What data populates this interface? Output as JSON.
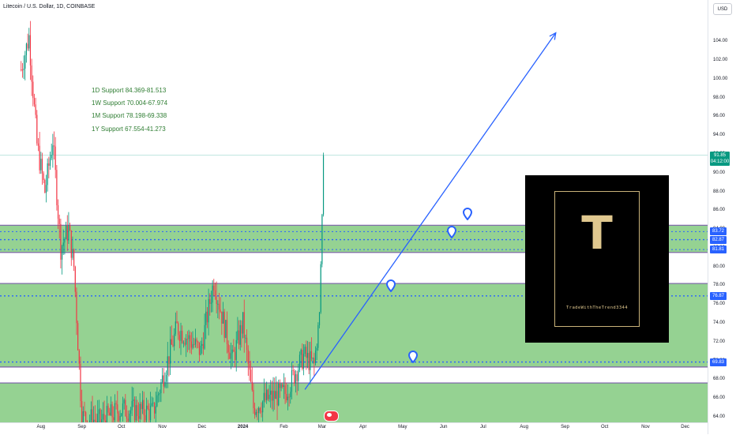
{
  "header": {
    "title": "Litecoin / U.S. Dollar, 1D, COINBASE",
    "currency": "USD"
  },
  "supports": [
    "1D Support 84.369-81.513",
    "1W Support 70.004-67.974",
    "1M Support 78.198-69.338",
    "1Y Support 67.554-41.273"
  ],
  "logo": {
    "letter": "T",
    "text": "TradeWithTheTrend3344",
    "bg": "#000000",
    "gold": "#e0c88f"
  },
  "price_tag": {
    "price": "91.85",
    "countdown": "04:12:00",
    "color": "#089981"
  },
  "level_badges": [
    {
      "label": "83.72",
      "value": 83.72,
      "color": "#2962ff"
    },
    {
      "label": "82.87",
      "value": 82.87,
      "color": "#2962ff"
    },
    {
      "label": "81.81",
      "value": 81.81,
      "color": "#2962ff"
    },
    {
      "label": "76.87",
      "value": 76.87,
      "color": "#2962ff"
    },
    {
      "label": "69.83",
      "value": 69.83,
      "color": "#2962ff"
    }
  ],
  "icons": [
    "location-marker-icon",
    "us-flag-event-icon"
  ],
  "colors": {
    "up": "#089981",
    "down": "#f23645",
    "zone_fill": "#8fd08c",
    "zone_border": "#7b5fa8",
    "level_line": "#2962ff",
    "arrow": "#2962ff"
  },
  "chart_data": {
    "type": "candlestick",
    "symbol": "Litecoin / U.S. Dollar",
    "interval": "1D",
    "exchange": "COINBASE",
    "ylim": [
      63.4,
      108.4
    ],
    "y_ticks": [
      "104.00",
      "102.00",
      "100.00",
      "98.00",
      "96.00",
      "94.00",
      "92.00",
      "90.00",
      "88.00",
      "86.00",
      "84.00",
      "82.00",
      "80.00",
      "78.00",
      "76.00",
      "74.00",
      "72.00",
      "70.00",
      "68.00",
      "66.00",
      "64.00"
    ],
    "x_ticks": [
      "Aug",
      "Sep",
      "Oct",
      "Nov",
      "Dec",
      "2024",
      "Feb",
      "Mar",
      "Apr",
      "May",
      "Jun",
      "Jul",
      "Aug",
      "Sep",
      "Oct",
      "Nov",
      "Dec"
    ],
    "x_tick_bold": [
      false,
      false,
      false,
      false,
      false,
      true,
      false,
      false,
      false,
      false,
      false,
      false,
      false,
      false,
      false,
      false,
      false
    ],
    "x_range_days": [
      -16,
      520
    ],
    "x_tick_days": [
      15,
      46,
      76,
      107,
      137,
      168,
      199,
      228,
      259,
      289,
      320,
      350,
      381,
      412,
      442,
      473,
      503
    ],
    "zones": [
      {
        "low": 81.5,
        "high": 84.4
      },
      {
        "low": 69.3,
        "high": 78.2
      },
      {
        "low": 41.3,
        "high": 67.6
      }
    ],
    "level_lines": [
      82.87,
      76.87,
      69.83
    ],
    "last_price": 91.85,
    "trend_arrow": {
      "start": [
        215,
        66.9
      ],
      "end": [
        405,
        104.9
      ]
    },
    "markers": [
      {
        "day": 338,
        "price": 84.9
      },
      {
        "day": 326,
        "price": 83.0
      },
      {
        "day": 280,
        "price": 77.3
      },
      {
        "day": 297,
        "price": 69.7
      }
    ],
    "key_points": [
      {
        "day": 0,
        "price": 101.0
      },
      {
        "day": 6,
        "price": 104.5
      },
      {
        "day": 12,
        "price": 93.0
      },
      {
        "day": 18,
        "price": 88.0
      },
      {
        "day": 24,
        "price": 93.5
      },
      {
        "day": 30,
        "price": 82.0
      },
      {
        "day": 36,
        "price": 84.0
      },
      {
        "day": 40,
        "price": 80.0
      },
      {
        "day": 46,
        "price": 64.0
      },
      {
        "day": 60,
        "price": 63.5
      },
      {
        "day": 76,
        "price": 64.8
      },
      {
        "day": 100,
        "price": 64.5
      },
      {
        "day": 118,
        "price": 73.5
      },
      {
        "day": 136,
        "price": 71.0
      },
      {
        "day": 146,
        "price": 78.5
      },
      {
        "day": 160,
        "price": 70.0
      },
      {
        "day": 168,
        "price": 74.0
      },
      {
        "day": 176,
        "price": 65.0
      },
      {
        "day": 188,
        "price": 66.0
      },
      {
        "day": 200,
        "price": 66.5
      },
      {
        "day": 214,
        "price": 70.5
      },
      {
        "day": 222,
        "price": 69.5
      },
      {
        "day": 226,
        "price": 75.0
      },
      {
        "day": 228,
        "price": 85.5
      },
      {
        "day": 229,
        "price": 91.85
      }
    ]
  }
}
